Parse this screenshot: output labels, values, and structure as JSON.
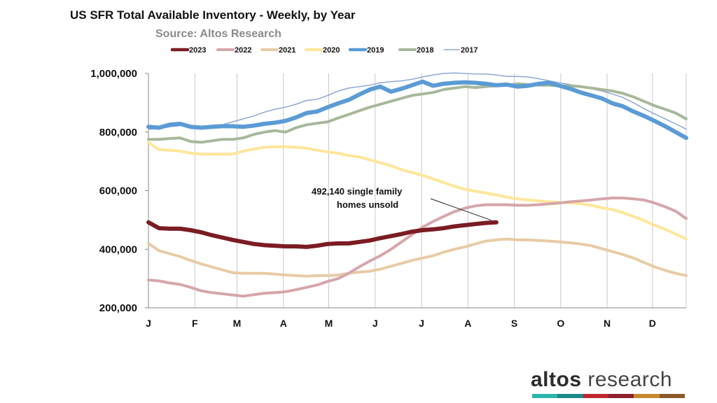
{
  "chart_data": {
    "type": "line",
    "title": "US SFR Total Available Inventory - Weekly, by Year",
    "subtitle": "Source: Altos Research",
    "xlabel": "",
    "ylabel": "",
    "x_weeks": [
      1,
      2,
      3,
      4,
      5,
      6,
      7,
      8,
      9,
      10,
      11,
      12,
      13,
      14,
      15,
      16,
      17,
      18,
      19,
      20,
      21,
      22,
      23,
      24,
      25,
      26,
      27,
      28,
      29,
      30,
      31,
      32,
      33,
      34,
      35,
      36,
      37,
      38,
      39,
      40,
      41,
      42,
      43,
      44,
      45,
      46,
      47,
      48,
      49,
      50,
      51,
      52
    ],
    "xlim": [
      1,
      52
    ],
    "ylim": [
      200000,
      1000000
    ],
    "yticks": [
      {
        "value": 200000,
        "label": "200,000"
      },
      {
        "value": 400000,
        "label": "400,000"
      },
      {
        "value": 600000,
        "label": "600,000"
      },
      {
        "value": 800000,
        "label": "800,000"
      },
      {
        "value": 1000000,
        "label": "1,000,000"
      }
    ],
    "month_ticks": [
      {
        "week": 1,
        "label": "J"
      },
      {
        "week": 5.4,
        "label": "F"
      },
      {
        "week": 9.4,
        "label": "M"
      },
      {
        "week": 13.8,
        "label": "A"
      },
      {
        "week": 18.1,
        "label": "M"
      },
      {
        "week": 22.5,
        "label": "J"
      },
      {
        "week": 26.9,
        "label": "J"
      },
      {
        "week": 31.3,
        "label": "A"
      },
      {
        "week": 35.7,
        "label": "S"
      },
      {
        "week": 40.1,
        "label": "O"
      },
      {
        "week": 44.5,
        "label": "N"
      },
      {
        "week": 48.8,
        "label": "D"
      }
    ],
    "series": [
      {
        "name": "2017",
        "color": "#8fa6d6",
        "width": 1.5,
        "values": [
          810000,
          812000,
          818000,
          822000,
          820000,
          815000,
          818000,
          825000,
          835000,
          845000,
          855000,
          868000,
          878000,
          885000,
          895000,
          908000,
          912000,
          925000,
          940000,
          950000,
          955000,
          960000,
          968000,
          972000,
          975000,
          980000,
          988000,
          995000,
          1000000,
          1002000,
          1000000,
          998000,
          998000,
          995000,
          990000,
          990000,
          988000,
          982000,
          975000,
          968000,
          962000,
          955000,
          948000,
          940000,
          930000,
          918000,
          900000,
          880000,
          862000,
          845000,
          828000,
          810000
        ]
      },
      {
        "name": "2018",
        "color": "#a7b89a",
        "width": 4,
        "values": [
          775000,
          775000,
          778000,
          780000,
          768000,
          765000,
          770000,
          775000,
          775000,
          780000,
          792000,
          800000,
          805000,
          800000,
          815000,
          825000,
          830000,
          835000,
          848000,
          860000,
          873000,
          885000,
          895000,
          905000,
          915000,
          925000,
          930000,
          935000,
          945000,
          950000,
          955000,
          952000,
          955000,
          958000,
          960000,
          965000,
          962000,
          960000,
          960000,
          958000,
          958000,
          955000,
          950000,
          945000,
          940000,
          932000,
          920000,
          905000,
          890000,
          878000,
          865000,
          845000
        ]
      },
      {
        "name": "2019",
        "color": "#5b9bd5",
        "width": 6,
        "values": [
          818000,
          815000,
          825000,
          828000,
          818000,
          815000,
          818000,
          820000,
          820000,
          818000,
          822000,
          828000,
          832000,
          838000,
          850000,
          865000,
          870000,
          885000,
          898000,
          910000,
          928000,
          945000,
          955000,
          938000,
          948000,
          960000,
          972000,
          958000,
          965000,
          968000,
          970000,
          968000,
          965000,
          960000,
          962000,
          955000,
          958000,
          965000,
          968000,
          958000,
          948000,
          935000,
          925000,
          915000,
          898000,
          888000,
          870000,
          855000,
          838000,
          820000,
          800000,
          780000
        ]
      },
      {
        "name": "2020",
        "color": "#ffe699",
        "width": 4,
        "values": [
          765000,
          740000,
          738000,
          735000,
          728000,
          725000,
          725000,
          725000,
          725000,
          735000,
          742000,
          748000,
          750000,
          750000,
          748000,
          745000,
          738000,
          732000,
          728000,
          720000,
          715000,
          705000,
          695000,
          685000,
          672000,
          662000,
          652000,
          640000,
          628000,
          615000,
          605000,
          598000,
          592000,
          585000,
          578000,
          572000,
          568000,
          565000,
          562000,
          560000,
          558000,
          555000,
          550000,
          542000,
          535000,
          525000,
          512000,
          498000,
          482000,
          468000,
          452000,
          435000
        ]
      },
      {
        "name": "2021",
        "color": "#e8cba5",
        "width": 4,
        "values": [
          420000,
          395000,
          385000,
          375000,
          362000,
          350000,
          340000,
          330000,
          320000,
          318000,
          318000,
          318000,
          315000,
          312000,
          310000,
          308000,
          310000,
          310000,
          312000,
          318000,
          322000,
          325000,
          332000,
          342000,
          352000,
          362000,
          370000,
          378000,
          390000,
          400000,
          408000,
          418000,
          428000,
          432000,
          435000,
          432000,
          432000,
          430000,
          428000,
          425000,
          422000,
          418000,
          412000,
          402000,
          392000,
          382000,
          370000,
          355000,
          340000,
          328000,
          318000,
          310000
        ]
      },
      {
        "name": "2022",
        "color": "#d5a6aa",
        "width": 4,
        "values": [
          295000,
          292000,
          285000,
          280000,
          270000,
          258000,
          252000,
          248000,
          244000,
          240000,
          245000,
          250000,
          252000,
          255000,
          262000,
          270000,
          278000,
          290000,
          300000,
          318000,
          340000,
          360000,
          378000,
          400000,
          425000,
          450000,
          475000,
          495000,
          512000,
          528000,
          540000,
          548000,
          552000,
          552000,
          552000,
          550000,
          550000,
          552000,
          555000,
          558000,
          562000,
          565000,
          568000,
          572000,
          575000,
          575000,
          572000,
          568000,
          558000,
          545000,
          530000,
          505000
        ]
      },
      {
        "name": "2023",
        "color": "#7b1c23",
        "width": 6,
        "values": [
          492000,
          472000,
          470000,
          470000,
          465000,
          458000,
          448000,
          440000,
          432000,
          425000,
          418000,
          414000,
          412000,
          410000,
          410000,
          408000,
          412000,
          418000,
          420000,
          420000,
          425000,
          430000,
          438000,
          445000,
          452000,
          460000,
          465000,
          468000,
          472000,
          478000,
          482000,
          486000,
          490000,
          492140
        ]
      }
    ],
    "legend_order": [
      "2023",
      "2022",
      "2021",
      "2020",
      "2019",
      "2018",
      "2017"
    ],
    "legend_position": "top",
    "annotation": {
      "line1": "492,140  single family",
      "line2": "homes unsold",
      "target_week": 33.5,
      "target_value": 492140
    }
  },
  "brand": {
    "word1": "altos",
    "word2": "research",
    "bar_colors": [
      "#2bb5ad",
      "#1a8a8a",
      "#c0262e",
      "#8e1f2c",
      "#c88a2e",
      "#8b5a2b"
    ]
  }
}
